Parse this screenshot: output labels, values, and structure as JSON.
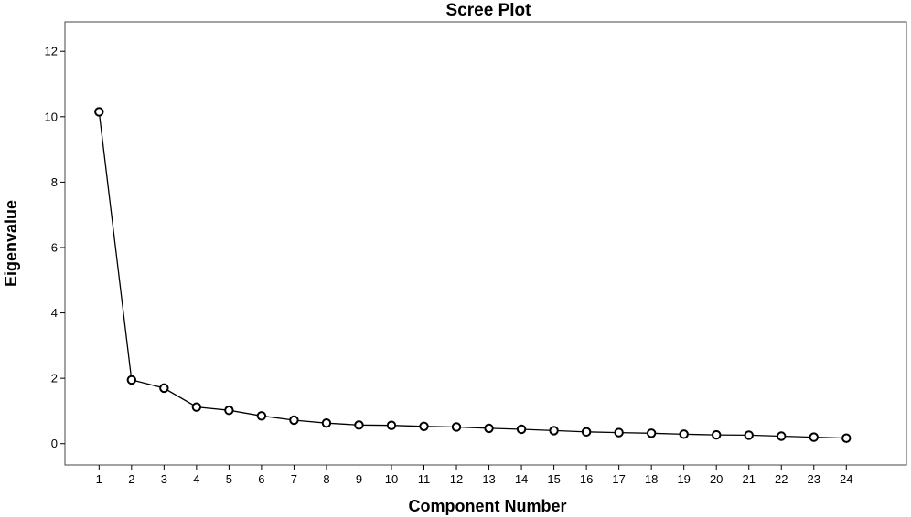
{
  "chart_data": {
    "type": "line",
    "title": "Scree Plot",
    "xlabel": "Component Number",
    "ylabel": "Eigenvalue",
    "x": [
      1,
      2,
      3,
      4,
      5,
      6,
      7,
      8,
      9,
      10,
      11,
      12,
      13,
      14,
      15,
      16,
      17,
      18,
      19,
      20,
      21,
      22,
      23,
      24
    ],
    "series": [
      {
        "values": [
          10.15,
          1.95,
          1.7,
          1.12,
          1.02,
          0.85,
          0.72,
          0.63,
          0.57,
          0.56,
          0.53,
          0.51,
          0.47,
          0.44,
          0.4,
          0.36,
          0.34,
          0.32,
          0.29,
          0.27,
          0.26,
          0.23,
          0.2,
          0.17
        ]
      }
    ],
    "x_ticks": [
      "1",
      "2",
      "3",
      "4",
      "5",
      "6",
      "7",
      "8",
      "9",
      "10",
      "11",
      "12",
      "13",
      "14",
      "15",
      "16",
      "17",
      "18",
      "19",
      "20",
      "21",
      "22",
      "23",
      "24"
    ],
    "y_ticks": [
      0,
      2,
      4,
      6,
      8,
      10,
      12
    ],
    "ylim": [
      -0.65,
      12.9
    ],
    "xlim": [
      -0.05,
      25.85
    ],
    "grid": false,
    "marker": "open-circle",
    "line_color": "#000000"
  }
}
